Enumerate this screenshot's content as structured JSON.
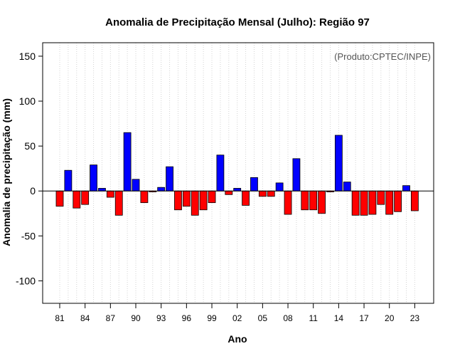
{
  "chart_data": {
    "type": "bar",
    "title": "Anomalia de Precipitação Mensal (Julho): Região 97",
    "xlabel": "Ano",
    "ylabel": "Anomalia de precipitação (mm)",
    "annotation": "(Produto:CPTEC/INPE)",
    "ylim": [
      -125,
      165
    ],
    "yticks": [
      -100,
      -50,
      0,
      50,
      100,
      150
    ],
    "xtick_labels": [
      "81",
      "84",
      "87",
      "90",
      "93",
      "96",
      "99",
      "02",
      "05",
      "08",
      "11",
      "14",
      "17",
      "20",
      "23"
    ],
    "grid": "vertical dotted",
    "categories": [
      "1981",
      "1982",
      "1983",
      "1984",
      "1985",
      "1986",
      "1987",
      "1988",
      "1989",
      "1990",
      "1991",
      "1992",
      "1993",
      "1994",
      "1995",
      "1996",
      "1997",
      "1998",
      "1999",
      "2000",
      "2001",
      "2002",
      "2003",
      "2004",
      "2005",
      "2006",
      "2007",
      "2008",
      "2009",
      "2010",
      "2011",
      "2012",
      "2013",
      "2014",
      "2015",
      "2016",
      "2017",
      "2018",
      "2019",
      "2020",
      "2021",
      "2022",
      "2023"
    ],
    "values": [
      -17,
      23,
      -19,
      -15,
      29,
      3,
      -7,
      -27,
      65,
      13,
      -13,
      -1,
      4,
      27,
      -21,
      -17,
      -27,
      -21,
      -13,
      40,
      -4,
      3,
      -16,
      15,
      -6,
      -6,
      9,
      -26,
      36,
      -21,
      -21,
      -25,
      -1,
      62,
      10,
      -27,
      -27,
      -26,
      -15,
      -26,
      -23,
      6,
      -22
    ],
    "colors": {
      "positive": "#0000ff",
      "negative": "#ff0000"
    }
  }
}
